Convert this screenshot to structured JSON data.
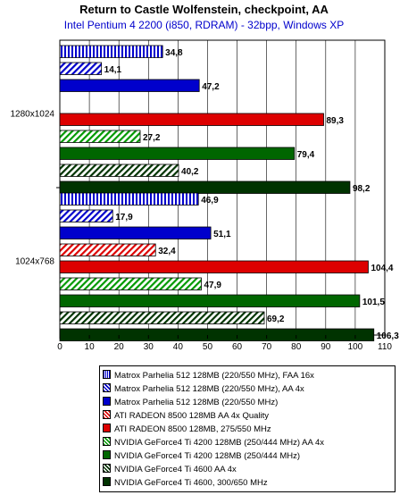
{
  "colors": {
    "parhelia": "#0000cc",
    "radeon": "#dd0000",
    "gf4_4200": "#006600",
    "gf4_4600": "#003300"
  },
  "chart_data": {
    "type": "bar",
    "orientation": "horizontal",
    "title": "Return to Castle Wolfenstein, checkpoint, AA",
    "subtitle": "Intel Pentium 4 2200 (i850, RDRAM) - 32bpp, Windows XP",
    "xlim": [
      0,
      110
    ],
    "xticks": [
      0,
      10,
      20,
      30,
      40,
      50,
      60,
      70,
      80,
      90,
      100,
      110
    ],
    "grid": true,
    "legend_position": "bottom",
    "categories": [
      "1280x1024",
      "1024x768"
    ],
    "series": [
      {
        "name": "Matrox Parhelia 512 128MB (220/550 MHz), FAA 16x",
        "color": "#0000cc",
        "pattern": "vertical",
        "values": [
          34.8,
          46.9
        ]
      },
      {
        "name": "Matrox Parhelia 512 128MB (220/550 MHz), AA 4x",
        "color": "#0000cc",
        "pattern": "diagonal",
        "values": [
          14.1,
          17.9
        ]
      },
      {
        "name": "Matrox Parhelia 512 128MB (220/550 MHz)",
        "color": "#0000cc",
        "pattern": "solid",
        "values": [
          47.2,
          51.1
        ]
      },
      {
        "name": "ATI RADEON 8500 128MB AA 4x Quality",
        "color": "#dd0000",
        "pattern": "diagonal",
        "values": [
          null,
          32.4
        ]
      },
      {
        "name": "ATI RADEON 8500 128MB, 275/550 MHz",
        "color": "#dd0000",
        "pattern": "solid",
        "values": [
          89.3,
          104.4
        ]
      },
      {
        "name": "NVIDIA GeForce4 Ti 4200 128MB (250/444 MHz) AA 4x",
        "color": "#009900",
        "pattern": "diagonal",
        "values": [
          27.2,
          47.9
        ]
      },
      {
        "name": "NVIDIA GeForce4 Ti 4200 128MB (250/444 MHz)",
        "color": "#006600",
        "pattern": "solid",
        "values": [
          79.4,
          101.5
        ]
      },
      {
        "name": "NVIDIA GeForce4 Ti 4600 AA 4x",
        "color": "#003300",
        "pattern": "diagonal",
        "values": [
          40.2,
          69.2
        ]
      },
      {
        "name": "NVIDIA GeForce4 Ti 4600, 300/650 MHz",
        "color": "#003300",
        "pattern": "solid",
        "values": [
          98.2,
          106.3
        ]
      }
    ],
    "value_labels": {
      "1280x1024": [
        "34,8",
        "14,1",
        "47,2",
        null,
        "89,3",
        "27,2",
        "79,4",
        "40,2",
        "98,2"
      ],
      "1024x768": [
        "46,9",
        "17,9",
        "51,1",
        "32,4",
        "104,4",
        "47,9",
        "101,5",
        "69,2",
        "106,3"
      ]
    }
  }
}
